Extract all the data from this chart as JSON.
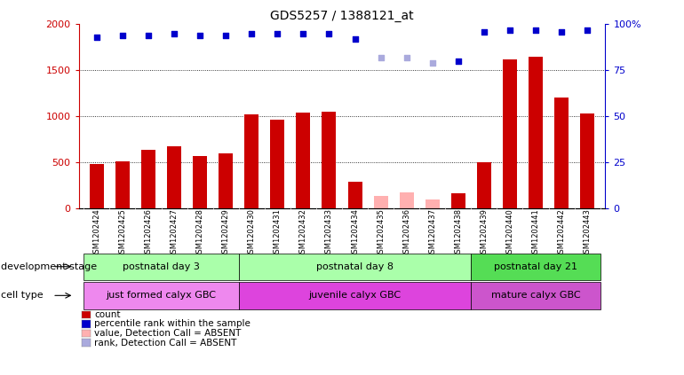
{
  "title": "GDS5257 / 1388121_at",
  "samples": [
    "GSM1202424",
    "GSM1202425",
    "GSM1202426",
    "GSM1202427",
    "GSM1202428",
    "GSM1202429",
    "GSM1202430",
    "GSM1202431",
    "GSM1202432",
    "GSM1202433",
    "GSM1202434",
    "GSM1202435",
    "GSM1202436",
    "GSM1202437",
    "GSM1202438",
    "GSM1202439",
    "GSM1202440",
    "GSM1202441",
    "GSM1202442",
    "GSM1202443"
  ],
  "counts": [
    480,
    510,
    630,
    670,
    570,
    600,
    1020,
    960,
    1040,
    1050,
    290,
    null,
    null,
    null,
    160,
    500,
    1620,
    1650,
    1200,
    1030
  ],
  "absent_counts": [
    null,
    null,
    null,
    null,
    null,
    null,
    null,
    null,
    null,
    null,
    null,
    130,
    175,
    90,
    null,
    null,
    null,
    null,
    null,
    null
  ],
  "ranks": [
    93,
    94,
    94,
    95,
    94,
    94,
    95,
    95,
    95,
    95,
    92,
    null,
    null,
    null,
    80,
    96,
    97,
    97,
    96,
    97
  ],
  "absent_ranks": [
    null,
    null,
    null,
    null,
    null,
    null,
    null,
    null,
    null,
    null,
    null,
    82,
    82,
    79,
    null,
    null,
    null,
    null,
    null,
    null
  ],
  "bar_color": "#cc0000",
  "absent_bar_color": "#ffb0b0",
  "rank_color": "#0000cc",
  "absent_rank_color": "#aaaadd",
  "ylim_left": [
    0,
    2000
  ],
  "ylim_right": [
    0,
    100
  ],
  "yticks_left": [
    0,
    500,
    1000,
    1500,
    2000
  ],
  "yticks_right": [
    0,
    25,
    50,
    75,
    100
  ],
  "groups": [
    {
      "label": "postnatal day 3",
      "start": 0,
      "end": 6,
      "color": "#aaffaa"
    },
    {
      "label": "postnatal day 8",
      "start": 6,
      "end": 15,
      "color": "#aaffaa"
    },
    {
      "label": "postnatal day 21",
      "start": 15,
      "end": 20,
      "color": "#55dd55"
    }
  ],
  "cell_types": [
    {
      "label": "just formed calyx GBC",
      "start": 0,
      "end": 6,
      "color": "#ee88ee"
    },
    {
      "label": "juvenile calyx GBC",
      "start": 6,
      "end": 15,
      "color": "#dd44dd"
    },
    {
      "label": "mature calyx GBC",
      "start": 15,
      "end": 20,
      "color": "#cc55cc"
    }
  ],
  "dev_stage_label": "development stage",
  "cell_type_label": "cell type",
  "legend_items": [
    {
      "label": "count",
      "color": "#cc0000"
    },
    {
      "label": "percentile rank within the sample",
      "color": "#0000cc"
    },
    {
      "label": "value, Detection Call = ABSENT",
      "color": "#ffb0b0"
    },
    {
      "label": "rank, Detection Call = ABSENT",
      "color": "#aaaadd"
    }
  ]
}
